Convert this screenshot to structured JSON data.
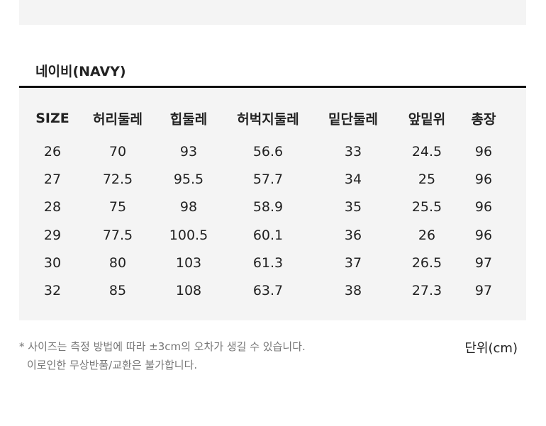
{
  "section": {
    "title": "네이비(NAVY)"
  },
  "table": {
    "header": [
      "SIZE",
      "허리둘레",
      "힙둘레",
      "허벅지둘레",
      "밑단둘레",
      "앞밑위",
      "총장"
    ],
    "rows": [
      [
        26,
        70,
        93,
        56.6,
        33,
        24.5,
        96
      ],
      [
        27,
        72.5,
        95.5,
        57.7,
        34,
        25,
        96
      ],
      [
        28,
        75,
        98,
        58.9,
        35,
        25.5,
        96
      ],
      [
        29,
        77.5,
        100.5,
        60.1,
        36,
        26,
        96
      ],
      [
        30,
        80,
        103,
        61.3,
        37,
        26.5,
        97
      ],
      [
        32,
        85,
        108,
        63.7,
        38,
        27.3,
        97
      ]
    ]
  },
  "notes": [
    "* 사이즈는 측정 방법에 따라 ±3cm의 오차가 생길 수 있습니다.",
    "이로인한 무상반품/교환은 불가합니다."
  ],
  "unit": "단위(cm)"
}
